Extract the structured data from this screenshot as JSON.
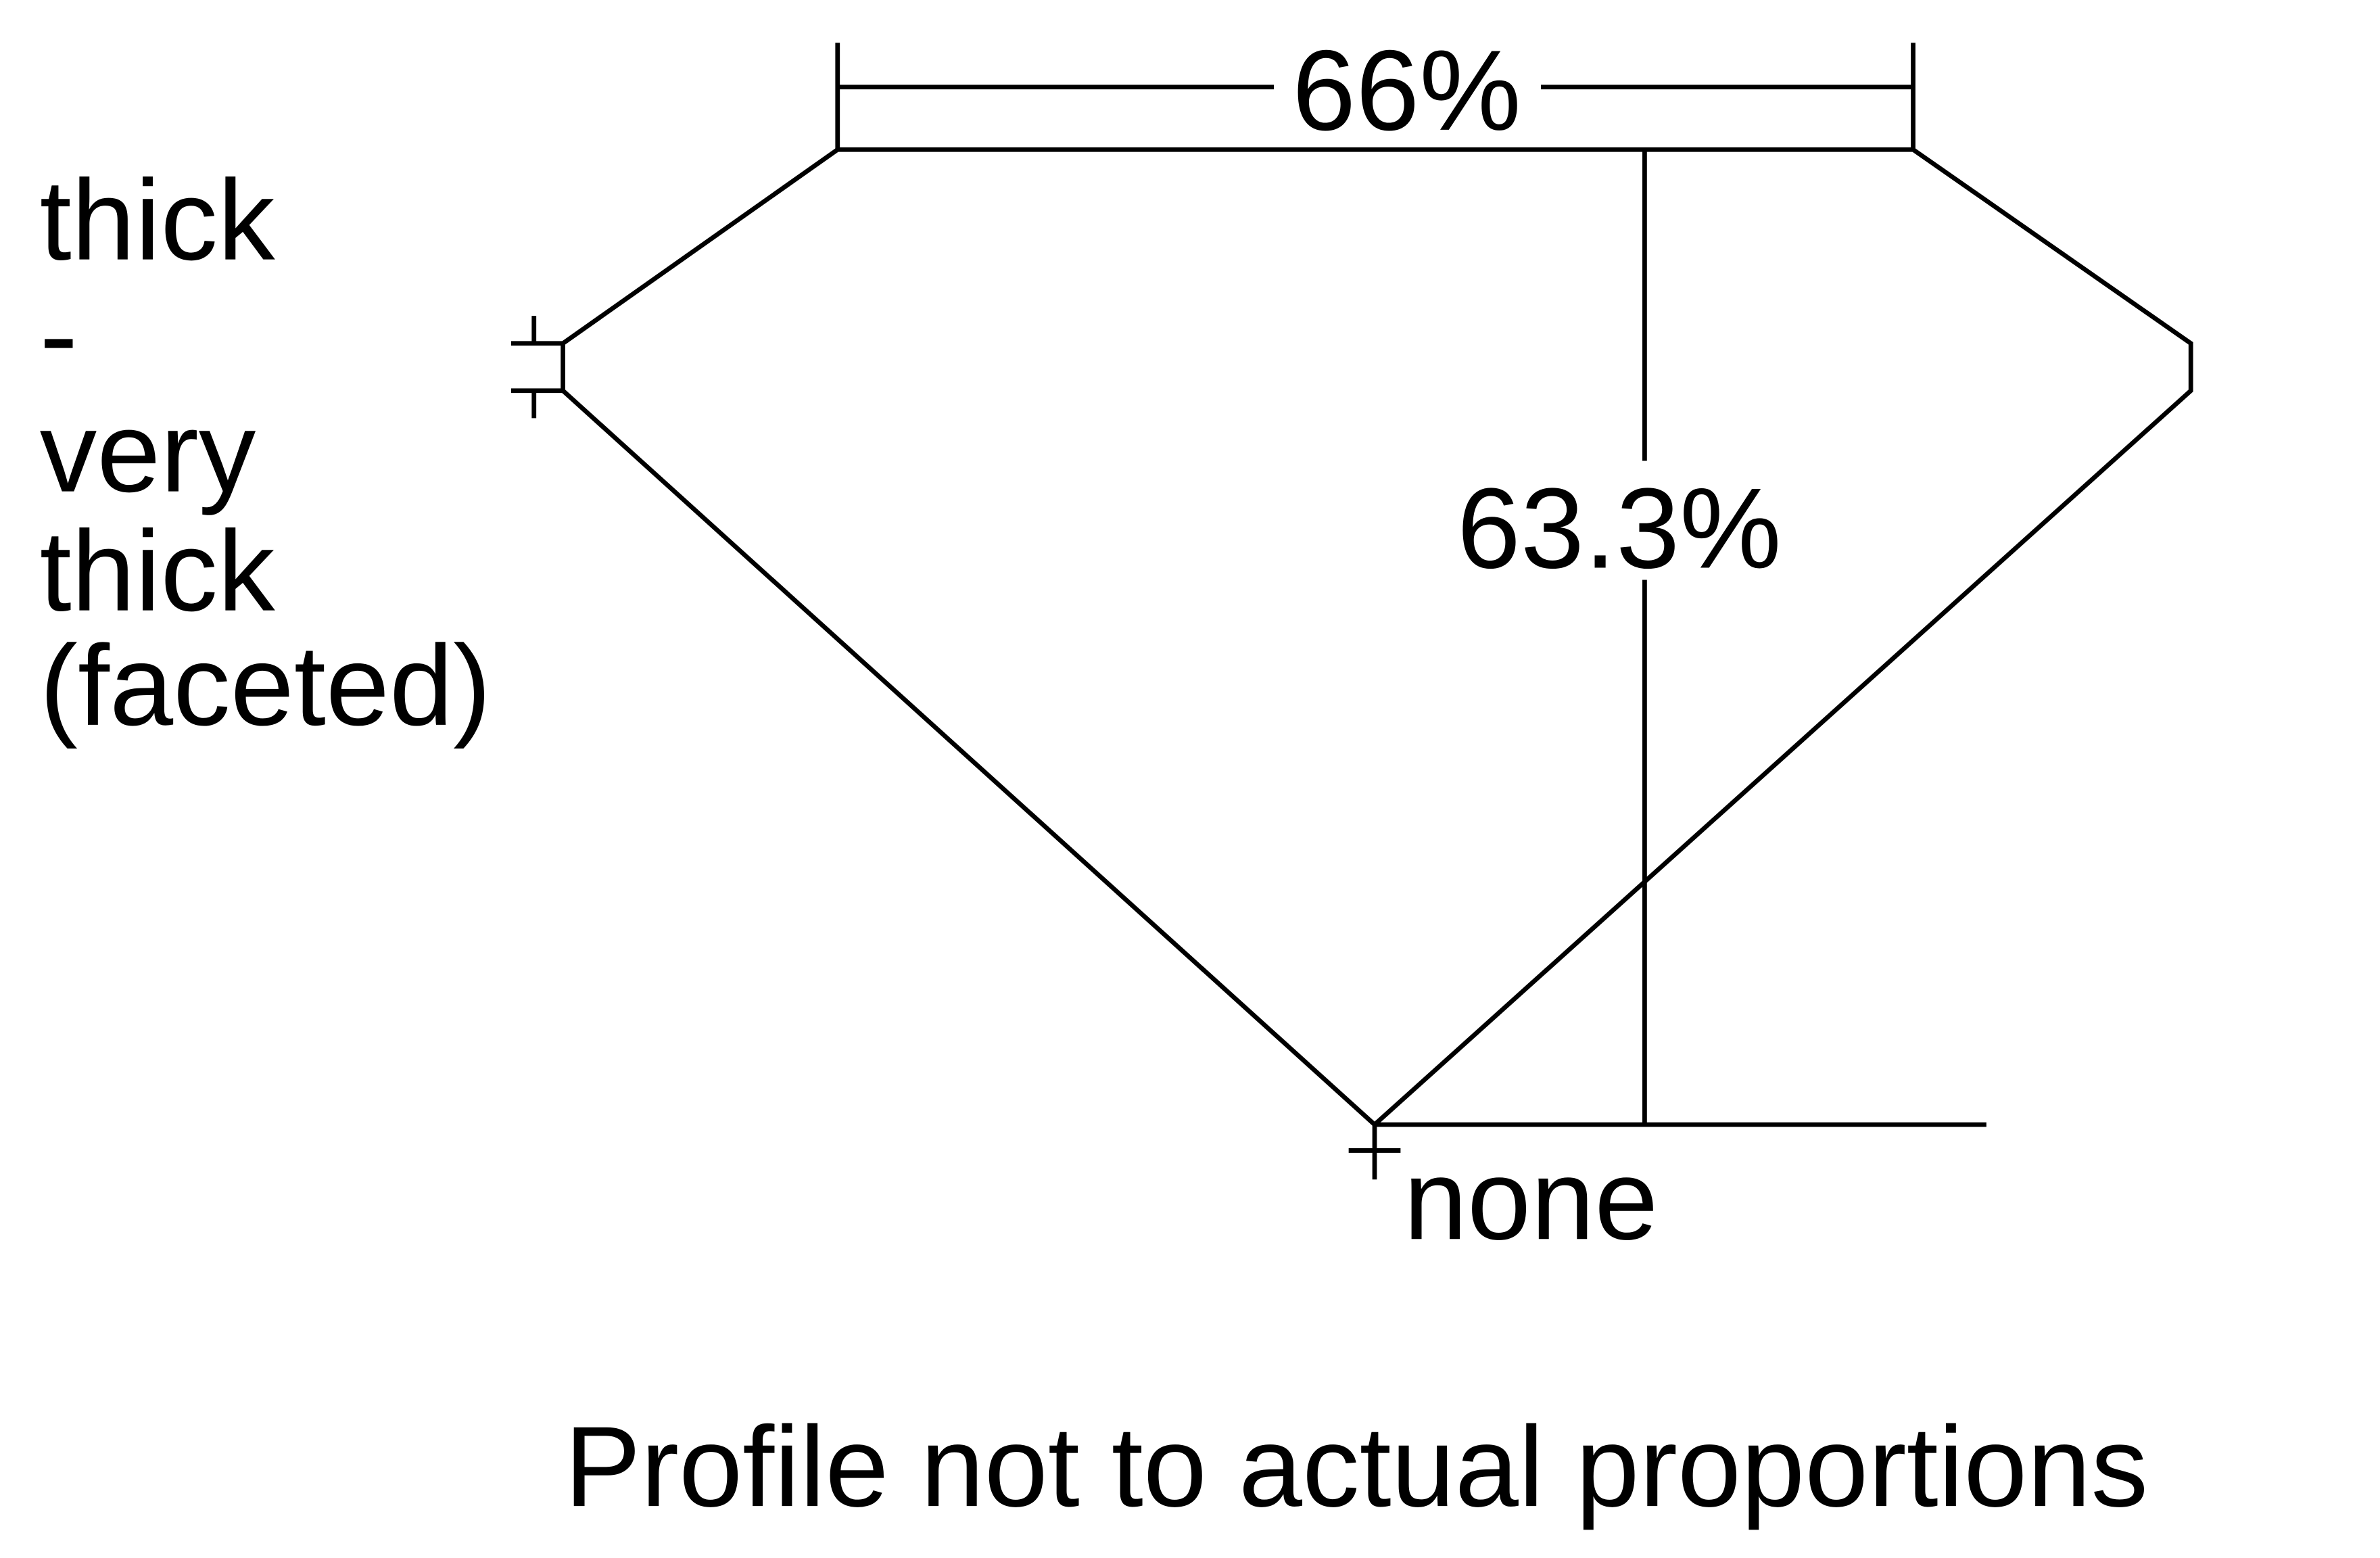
{
  "labels": {
    "girdle_line1": "thick",
    "girdle_line2": "-",
    "girdle_line3": "very",
    "girdle_line4": "thick",
    "girdle_line5": "(faceted)",
    "table_percent": "66%",
    "depth_percent": "63.3%",
    "culet": "none",
    "footnote": "Profile not to actual proportions"
  },
  "colors": {
    "line": "#000000",
    "background": "#ffffff"
  }
}
